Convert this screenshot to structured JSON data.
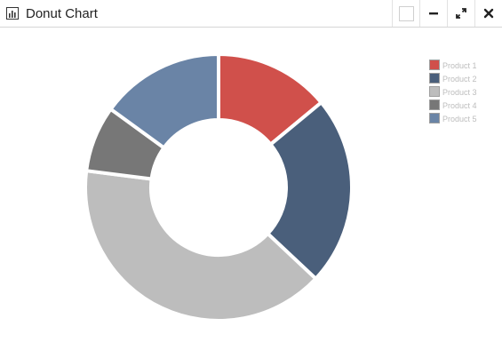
{
  "window": {
    "title": "Donut Chart",
    "icon": "bar-chart-icon",
    "controls": [
      {
        "name": "restore-button",
        "icon": "restore-icon"
      },
      {
        "name": "minimize-button",
        "icon": "minimize-icon"
      },
      {
        "name": "maximize-button",
        "icon": "expand-icon"
      },
      {
        "name": "close-button",
        "icon": "close-icon"
      }
    ]
  },
  "chart_data": {
    "type": "pie",
    "variant": "donut",
    "title": "",
    "categories": [
      "Product 1",
      "Product 2",
      "Product 3",
      "Product 4",
      "Product 5"
    ],
    "values": [
      14,
      23,
      40,
      8,
      15
    ],
    "colors": [
      "#d0504b",
      "#4a5f7b",
      "#bdbdbd",
      "#777777",
      "#6a84a6"
    ],
    "legend": "top-right",
    "start_angle": "top",
    "direction": "clockwise"
  }
}
